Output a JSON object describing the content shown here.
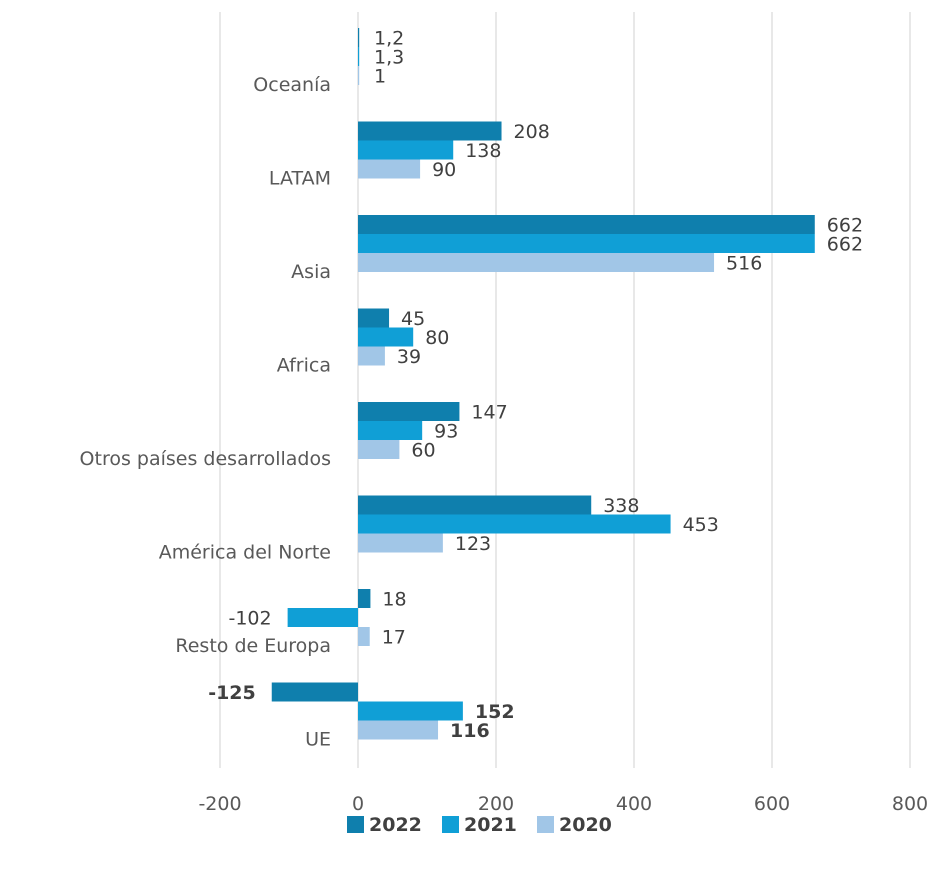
{
  "chart_data": {
    "type": "bar",
    "orientation": "horizontal",
    "title": "",
    "xlabel": "",
    "ylabel": "",
    "categories": [
      "Oceanía",
      "LATAM",
      "Asia",
      "Africa",
      "Otros países desarrollados",
      "América del Norte",
      "Resto de Europa",
      "UE"
    ],
    "series": [
      {
        "name": "2022",
        "color": "#0f7fad",
        "values": [
          1.2,
          208,
          662,
          45,
          147,
          338,
          18,
          -125
        ],
        "labels": [
          "1,2",
          "208",
          "662",
          "45",
          "147",
          "338",
          "18",
          "-125"
        ]
      },
      {
        "name": "2021",
        "color": "#109fd6",
        "values": [
          1.3,
          138,
          662,
          80,
          93,
          453,
          -102,
          152
        ],
        "labels": [
          "1,3",
          "138",
          "662",
          "80",
          "93",
          "453",
          "-102",
          "152"
        ]
      },
      {
        "name": "2020",
        "color": "#a1c6e7",
        "values": [
          1,
          90,
          516,
          39,
          60,
          123,
          17,
          116
        ],
        "labels": [
          "1",
          "90",
          "516",
          "39",
          "60",
          "123",
          "17",
          "116"
        ]
      }
    ],
    "bold_category": "UE",
    "xlim": [
      -200,
      800
    ],
    "ticks": [
      -200,
      0,
      200,
      400,
      600,
      800
    ],
    "tick_labels": [
      "-200",
      "0",
      "200",
      "400",
      "600",
      "800"
    ],
    "grid": true,
    "legend_position": "bottom"
  }
}
